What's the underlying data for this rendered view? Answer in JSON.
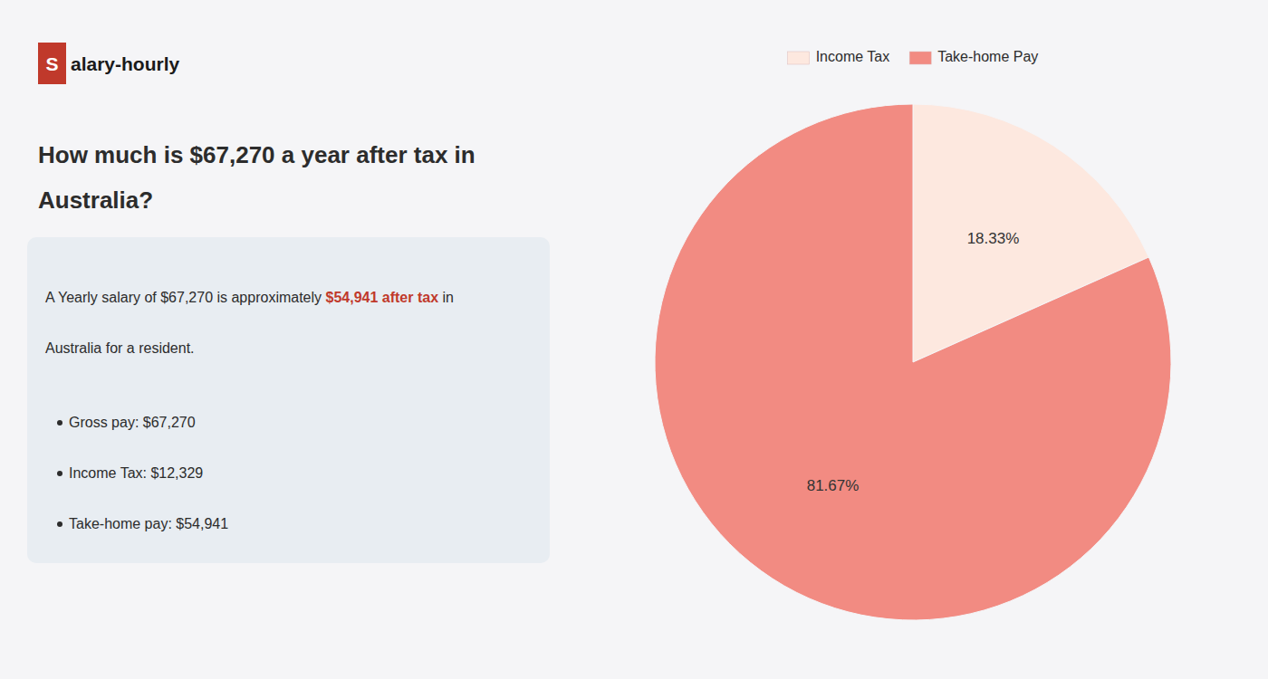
{
  "chart_data": {
    "type": "pie",
    "title": [
      "How much is $67,270 a year after tax in",
      "Australia?"
    ],
    "annotations": [
      "S",
      "alary-hourly",
      "A Yearly salary of $67,270 is approximately ",
      "$54,941 after tax",
      " in",
      "Australia for a resident.",
      "Gross pay: $67,270",
      "Income Tax: $12,329",
      "Take-home pay: $54,941"
    ],
    "categories": [
      "Income Tax",
      "Take-home Pay"
    ],
    "values": [
      18.33,
      81.67
    ],
    "value_labels": [
      "18.33%",
      "81.67%"
    ],
    "colors": [
      "#fde8df",
      "#f28b82"
    ],
    "data_labels": true,
    "legend": "top"
  }
}
